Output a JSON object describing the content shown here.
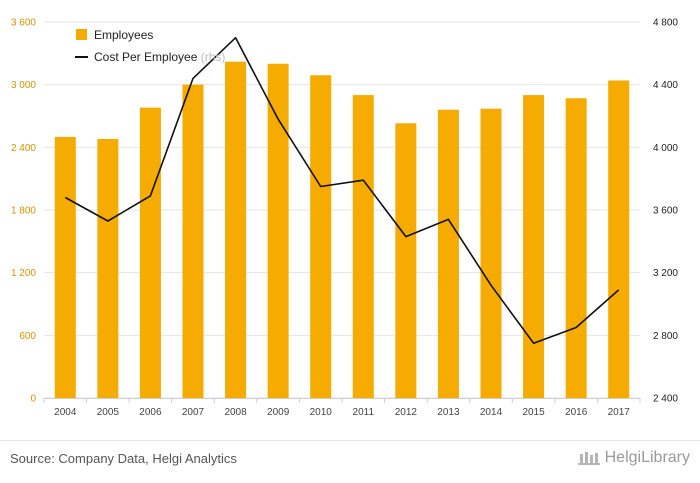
{
  "chart_data": {
    "type": "bar",
    "categories": [
      "2004",
      "2005",
      "2006",
      "2007",
      "2008",
      "2009",
      "2010",
      "2011",
      "2012",
      "2013",
      "2014",
      "2015",
      "2016",
      "2017"
    ],
    "series": [
      {
        "name": "Employees",
        "type": "bar",
        "axis": "left",
        "color": "#f5ab00",
        "values": [
          2500,
          2480,
          2780,
          3000,
          3220,
          3200,
          3090,
          2900,
          2630,
          2760,
          2770,
          2900,
          2870,
          3040
        ]
      },
      {
        "name": "Cost Per Employee",
        "legend_suffix": "(rhs)",
        "type": "line",
        "axis": "right",
        "color": "#111111",
        "values": [
          3680,
          3530,
          3690,
          4440,
          4700,
          4180,
          3750,
          3790,
          3430,
          3540,
          3120,
          2750,
          2850,
          3090
        ]
      }
    ],
    "y_left": {
      "ylim": [
        0,
        3600
      ],
      "ticks": [
        0,
        600,
        1200,
        1800,
        2400,
        3000,
        3600
      ],
      "tick_labels": [
        "0",
        "600",
        "1 200",
        "1 800",
        "2 400",
        "3 000",
        "3 600"
      ]
    },
    "y_right": {
      "ylim": [
        2400,
        4800
      ],
      "ticks": [
        2400,
        2800,
        3200,
        3600,
        4000,
        4400,
        4800
      ],
      "tick_labels": [
        "2 400",
        "2 800",
        "3 200",
        "3 600",
        "4 000",
        "4 400",
        "4 800"
      ]
    },
    "legend_position": "top-left",
    "grid": true
  },
  "footer": {
    "source": "Source: Company Data, Helgi Analytics",
    "brand": "HelgiLibrary"
  }
}
